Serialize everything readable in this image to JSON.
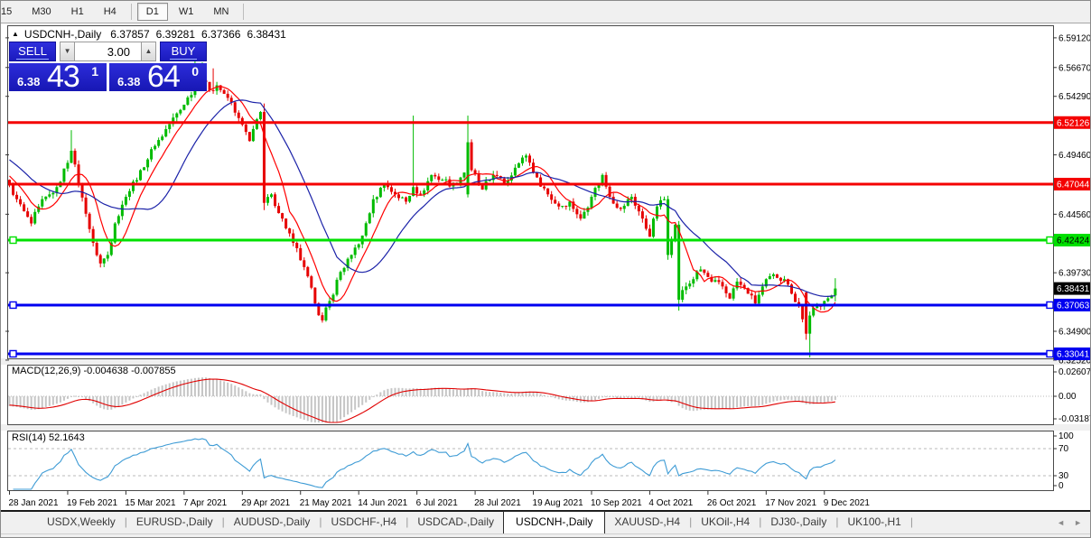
{
  "toolbar": {
    "timeframe_buttons": [
      "15",
      "M30",
      "H1",
      "H4",
      "D1",
      "W1",
      "MN"
    ],
    "active_timeframe": "D1"
  },
  "chart_header": {
    "marker": "▲",
    "symbol": "USDCNH-,Daily",
    "open": "6.37857",
    "high": "6.39281",
    "low": "6.37366",
    "close": "6.38431"
  },
  "trade_panel": {
    "sell_label": "SELL",
    "buy_label": "BUY",
    "volume": "3.00",
    "volume_down_icon": "▼",
    "volume_up_icon": "▲",
    "sell_price_prefix": "6.38",
    "sell_price_big": "43",
    "sell_price_sup": "1",
    "buy_price_prefix": "6.38",
    "buy_price_big": "64",
    "buy_price_sup": "0"
  },
  "price_axis": {
    "ticks": [
      6.5912,
      6.5667,
      6.5429,
      6.4946,
      6.4456,
      6.3973,
      6.349,
      6.3252
    ],
    "current_price_badge": {
      "value": 6.38431,
      "bg": "#000000",
      "fg": "#ffffff"
    }
  },
  "horizontal_lines": [
    {
      "value": 6.52126,
      "color": "#f40000",
      "badge_fg": "#ffffff",
      "handles": false
    },
    {
      "value": 6.47044,
      "color": "#f40000",
      "badge_fg": "#ffffff",
      "handles": false
    },
    {
      "value": 6.42424,
      "color": "#00e000",
      "badge_fg": "#000000",
      "handles": true
    },
    {
      "value": 6.37063,
      "color": "#0000f0",
      "badge_fg": "#ffffff",
      "handles": true
    },
    {
      "value": 6.33041,
      "color": "#0000f0",
      "badge_fg": "#ffffff",
      "handles": true
    }
  ],
  "chart_data": {
    "type": "candlestick",
    "symbol": "USDCNH-",
    "timeframe": "Daily",
    "candle_count": 228,
    "ylim": [
      6.3266,
      6.6001
    ],
    "bull_color": "#00bb00",
    "bear_color": "#e60000",
    "date_ticks": [
      [
        0,
        "28 Jan 2021"
      ],
      [
        16,
        "19 Feb 2021"
      ],
      [
        32,
        "15 Mar 2021"
      ],
      [
        48,
        "7 Apr 2021"
      ],
      [
        64,
        "29 Apr 2021"
      ],
      [
        80,
        "21 May 2021"
      ],
      [
        96,
        "14 Jun 2021"
      ],
      [
        112,
        "6 Jul 2021"
      ],
      [
        128,
        "28 Jul 2021"
      ],
      [
        144,
        "19 Aug 2021"
      ],
      [
        160,
        "10 Sep 2021"
      ],
      [
        176,
        "4 Oct 2021"
      ],
      [
        192,
        "26 Oct 2021"
      ],
      [
        208,
        "17 Nov 2021"
      ],
      [
        224,
        "9 Dec 2021"
      ]
    ],
    "close_waypoints": [
      [
        0,
        6.47
      ],
      [
        2,
        6.458
      ],
      [
        4,
        6.448
      ],
      [
        6,
        6.438
      ],
      [
        8,
        6.452
      ],
      [
        11,
        6.462
      ],
      [
        13,
        6.468
      ],
      [
        16,
        6.488
      ],
      [
        17,
        6.498
      ],
      [
        19,
        6.47
      ],
      [
        21,
        6.446
      ],
      [
        23,
        6.422
      ],
      [
        25,
        6.405
      ],
      [
        27,
        6.412
      ],
      [
        29,
        6.438
      ],
      [
        32,
        6.46
      ],
      [
        36,
        6.482
      ],
      [
        40,
        6.502
      ],
      [
        44,
        6.52
      ],
      [
        48,
        6.536
      ],
      [
        51,
        6.552
      ],
      [
        53,
        6.556
      ],
      [
        55,
        6.548
      ],
      [
        57,
        6.552
      ],
      [
        59,
        6.545
      ],
      [
        61,
        6.538
      ],
      [
        63,
        6.525
      ],
      [
        66,
        6.506
      ],
      [
        68,
        6.524
      ],
      [
        69,
        6.53
      ],
      [
        70,
        6.455
      ],
      [
        72,
        6.462
      ],
      [
        75,
        6.442
      ],
      [
        78,
        6.422
      ],
      [
        81,
        6.402
      ],
      [
        84,
        6.372
      ],
      [
        86,
        6.358
      ],
      [
        88,
        6.374
      ],
      [
        91,
        6.398
      ],
      [
        94,
        6.412
      ],
      [
        97,
        6.428
      ],
      [
        100,
        6.458
      ],
      [
        103,
        6.47
      ],
      [
        106,
        6.462
      ],
      [
        109,
        6.456
      ],
      [
        111,
        6.468
      ],
      [
        113,
        6.462
      ],
      [
        116,
        6.478
      ],
      [
        119,
        6.474
      ],
      [
        122,
        6.47
      ],
      [
        125,
        6.48
      ],
      [
        126,
        6.505
      ],
      [
        127,
        6.482
      ],
      [
        130,
        6.466
      ],
      [
        133,
        6.478
      ],
      [
        136,
        6.47
      ],
      [
        139,
        6.484
      ],
      [
        142,
        6.494
      ],
      [
        145,
        6.476
      ],
      [
        148,
        6.462
      ],
      [
        151,
        6.452
      ],
      [
        154,
        6.456
      ],
      [
        157,
        6.442
      ],
      [
        160,
        6.46
      ],
      [
        163,
        6.478
      ],
      [
        165,
        6.46
      ],
      [
        168,
        6.45
      ],
      [
        171,
        6.46
      ],
      [
        174,
        6.442
      ],
      [
        176,
        6.427
      ],
      [
        178,
        6.452
      ],
      [
        180,
        6.458
      ],
      [
        181,
        6.412
      ],
      [
        182,
        6.425
      ],
      [
        183,
        6.437
      ],
      [
        184,
        6.375
      ],
      [
        185,
        6.383
      ],
      [
        186,
        6.386
      ],
      [
        188,
        6.392
      ],
      [
        190,
        6.4
      ],
      [
        193,
        6.39
      ],
      [
        196,
        6.386
      ],
      [
        198,
        6.376
      ],
      [
        200,
        6.39
      ],
      [
        203,
        6.38
      ],
      [
        205,
        6.372
      ],
      [
        207,
        6.386
      ],
      [
        210,
        6.396
      ],
      [
        213,
        6.392
      ],
      [
        215,
        6.38
      ],
      [
        217,
        6.37
      ],
      [
        219,
        6.347
      ],
      [
        220,
        6.362
      ],
      [
        222,
        6.37
      ],
      [
        224,
        6.374
      ],
      [
        226,
        6.3785
      ],
      [
        227,
        6.38431
      ]
    ],
    "candle_overrides": {
      "17": {
        "h": 6.515
      },
      "51": {
        "h": 6.578
      },
      "53": {
        "h": 6.571
      },
      "56": {
        "h": 6.566
      },
      "70": {
        "h": 6.537,
        "l": 6.449
      },
      "111": {
        "h": 6.527
      },
      "126": {
        "o": 6.462,
        "h": 6.527
      },
      "181": {
        "dir": "up",
        "l": 6.408
      },
      "184": {
        "o": 6.437,
        "h": 6.44,
        "l": 6.366,
        "dir": "up"
      },
      "219": {
        "o": 6.381,
        "l": 6.342
      },
      "220": {
        "l": 6.327
      },
      "227": {
        "o": 6.37857,
        "h": 6.39281,
        "l": 6.37366
      }
    },
    "last_candle": {
      "open": 6.37857,
      "high": 6.39281,
      "low": 6.37366,
      "close": 6.38431
    },
    "moving_averages": [
      {
        "period": 8,
        "color": "#ff0000"
      },
      {
        "period": 21,
        "color": "#1b22a8"
      }
    ],
    "indicators": [
      {
        "name": "MACD",
        "params": "12,26,9",
        "values_text": "-0.004638 -0.007855",
        "axis_ticks": [
          "0.02607",
          "0.00",
          "-0.03187"
        ],
        "histogram_color": "#c6c6c6",
        "signal_color": "#e00000"
      },
      {
        "name": "RSI",
        "params": "14",
        "values_text": "52.1643",
        "axis_ticks": [
          "100",
          "70",
          "30",
          "0"
        ],
        "levels": [
          70,
          30
        ],
        "line_color": "#3d9bd5"
      }
    ]
  },
  "bottom_tabs": {
    "separator": "|",
    "tabs": [
      "USDX,Weekly",
      "EURUSD-,Daily",
      "AUDUSD-,Daily",
      "USDCHF-,H4",
      "USDCAD-,Daily",
      "USDCNH-,Daily",
      "XAUUSD-,H4",
      "UKOil-,H4",
      "DJ30-,Daily",
      "UK100-,H1"
    ],
    "active_tab": "USDCNH-,Daily",
    "scroll_left_icon": "◄",
    "scroll_right_icon": "►"
  }
}
